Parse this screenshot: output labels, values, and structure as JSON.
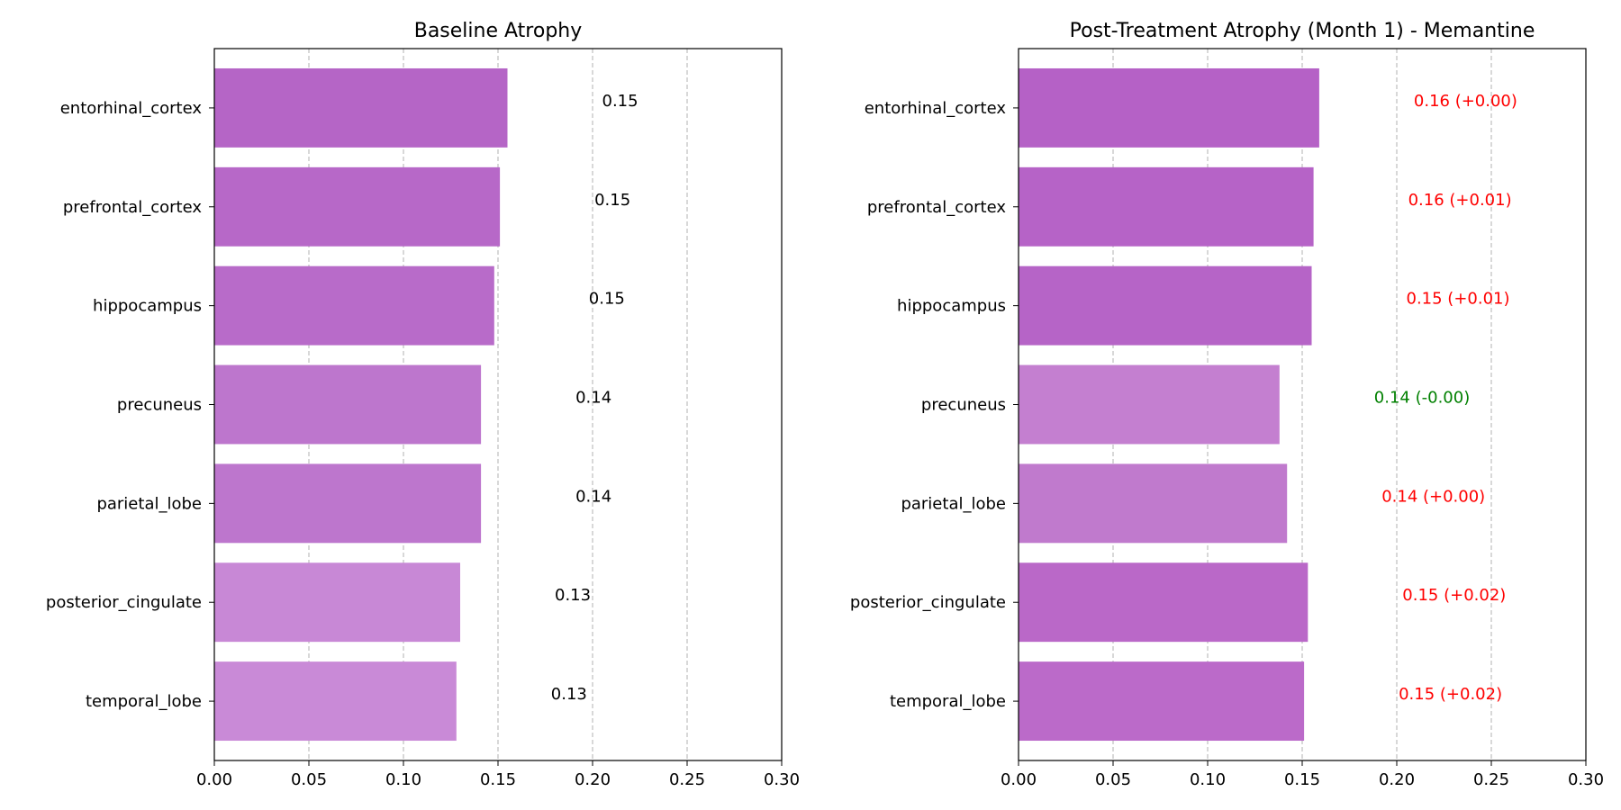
{
  "chart_data": [
    {
      "type": "bar",
      "orientation": "horizontal",
      "title": "Baseline Atrophy",
      "xlabel": "",
      "ylabel": "",
      "xlim": [
        0,
        0.3
      ],
      "xticks": [
        "0.00",
        "0.05",
        "0.10",
        "0.15",
        "0.20",
        "0.25",
        "0.30"
      ],
      "grid": "x-dashed",
      "categories": [
        "entorhinal_cortex",
        "prefrontal_cortex",
        "hippocampus",
        "precuneus",
        "parietal_lobe",
        "posterior_cingulate",
        "temporal_lobe"
      ],
      "values": [
        0.155,
        0.151,
        0.148,
        0.141,
        0.141,
        0.13,
        0.128
      ],
      "bar_colors": [
        "#b565c6",
        "#b768c8",
        "#b86bc9",
        "#bd76cd",
        "#bd76cd",
        "#c888d6",
        "#c98ad7"
      ],
      "value_labels": [
        "0.15",
        "0.15",
        "0.15",
        "0.14",
        "0.14",
        "0.13",
        "0.13"
      ],
      "label_colors": [
        "#000000",
        "#000000",
        "#000000",
        "#000000",
        "#000000",
        "#000000",
        "#000000"
      ]
    },
    {
      "type": "bar",
      "orientation": "horizontal",
      "title": "Post-Treatment Atrophy (Month 1) - Memantine",
      "xlabel": "",
      "ylabel": "",
      "xlim": [
        0,
        0.3
      ],
      "xticks": [
        "0.00",
        "0.05",
        "0.10",
        "0.15",
        "0.20",
        "0.25",
        "0.30"
      ],
      "grid": "x-dashed",
      "categories": [
        "entorhinal_cortex",
        "prefrontal_cortex",
        "hippocampus",
        "precuneus",
        "parietal_lobe",
        "posterior_cingulate",
        "temporal_lobe"
      ],
      "values": [
        0.159,
        0.156,
        0.155,
        0.138,
        0.142,
        0.153,
        0.151
      ],
      "bar_colors": [
        "#b561c6",
        "#b663c7",
        "#b664c7",
        "#c47fd0",
        "#c07acd",
        "#ba68c8",
        "#bb6ac9"
      ],
      "value_labels": [
        "0.16 (+0.00)",
        "0.16 (+0.01)",
        "0.15 (+0.01)",
        "0.14 (-0.00)",
        "0.14 (+0.00)",
        "0.15 (+0.02)",
        "0.15 (+0.02)"
      ],
      "label_colors": [
        "#ff0000",
        "#ff0000",
        "#ff0000",
        "#008000",
        "#ff0000",
        "#ff0000",
        "#ff0000"
      ]
    }
  ]
}
